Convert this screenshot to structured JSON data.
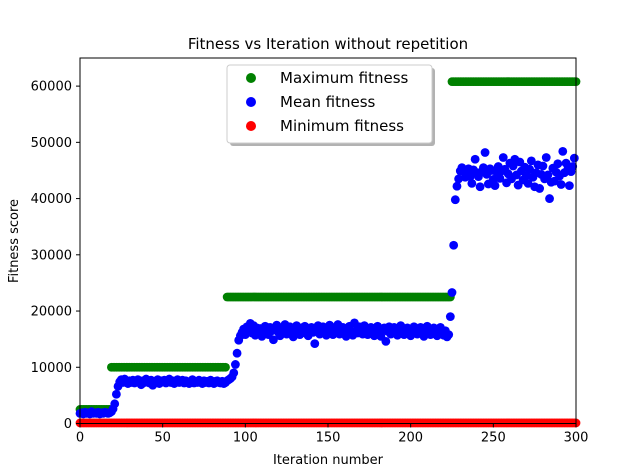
{
  "chart_data": {
    "type": "scatter",
    "title": "Fitness vs Iteration without repetition",
    "xlabel": "Iteration number",
    "ylabel": "Fitness score",
    "xlim": [
      0,
      300
    ],
    "ylim": [
      0,
      65000
    ],
    "xticks": [
      0,
      50,
      100,
      150,
      200,
      250,
      300
    ],
    "yticks": [
      0,
      10000,
      20000,
      30000,
      40000,
      50000,
      60000
    ],
    "xtick_labels": [
      "0",
      "50",
      "100",
      "150",
      "200",
      "250",
      "300"
    ],
    "ytick_labels": [
      "0",
      "10000",
      "20000",
      "30000",
      "40000",
      "50000",
      "60000"
    ],
    "grid": false,
    "legend_position": "upper center",
    "series": [
      {
        "name": "Maximum fitness",
        "color": "#008000",
        "segments": [
          {
            "x_start": 0,
            "x_end": 18,
            "y": 2500
          },
          {
            "x_start": 19,
            "x_end": 88,
            "y": 10000
          },
          {
            "x_start": 89,
            "x_end": 224,
            "y": 22500
          },
          {
            "x_start": 225,
            "x_end": 300,
            "y": 60800
          }
        ]
      },
      {
        "name": "Mean fitness",
        "color": "#0000ff",
        "points": [
          [
            0,
            1800
          ],
          [
            1,
            1900
          ],
          [
            2,
            1700
          ],
          [
            3,
            2000
          ],
          [
            4,
            1800
          ],
          [
            5,
            1900
          ],
          [
            6,
            1700
          ],
          [
            7,
            2100
          ],
          [
            8,
            1800
          ],
          [
            9,
            1900
          ],
          [
            10,
            1800
          ],
          [
            11,
            2000
          ],
          [
            12,
            1700
          ],
          [
            13,
            1900
          ],
          [
            14,
            1800
          ],
          [
            15,
            2000
          ],
          [
            16,
            1900
          ],
          [
            17,
            1800
          ],
          [
            18,
            1900
          ],
          [
            19,
            2100
          ],
          [
            20,
            2600
          ],
          [
            21,
            3500
          ],
          [
            22,
            5200
          ],
          [
            23,
            6600
          ],
          [
            24,
            7400
          ],
          [
            25,
            7800
          ],
          [
            26,
            7300
          ],
          [
            27,
            7900
          ],
          [
            28,
            7500
          ],
          [
            29,
            7100
          ],
          [
            30,
            7600
          ],
          [
            31,
            7300
          ],
          [
            32,
            7700
          ],
          [
            33,
            7200
          ],
          [
            34,
            7500
          ],
          [
            35,
            7800
          ],
          [
            36,
            7400
          ],
          [
            37,
            6900
          ],
          [
            38,
            7600
          ],
          [
            39,
            7300
          ],
          [
            40,
            7900
          ],
          [
            41,
            7400
          ],
          [
            42,
            7200
          ],
          [
            43,
            7700
          ],
          [
            44,
            6800
          ],
          [
            45,
            7500
          ],
          [
            46,
            7300
          ],
          [
            47,
            7800
          ],
          [
            48,
            7100
          ],
          [
            49,
            7600
          ],
          [
            50,
            7400
          ],
          [
            51,
            7700
          ],
          [
            52,
            7200
          ],
          [
            53,
            7500
          ],
          [
            54,
            7900
          ],
          [
            55,
            7300
          ],
          [
            56,
            7600
          ],
          [
            57,
            7100
          ],
          [
            58,
            7500
          ],
          [
            59,
            7800
          ],
          [
            60,
            7300
          ],
          [
            61,
            7400
          ],
          [
            62,
            7700
          ],
          [
            63,
            7200
          ],
          [
            64,
            7600
          ],
          [
            65,
            7400
          ],
          [
            66,
            7100
          ],
          [
            67,
            7500
          ],
          [
            68,
            7800
          ],
          [
            69,
            7200
          ],
          [
            70,
            7500
          ],
          [
            71,
            7300
          ],
          [
            72,
            7700
          ],
          [
            73,
            7400
          ],
          [
            74,
            7100
          ],
          [
            75,
            7600
          ],
          [
            76,
            7300
          ],
          [
            77,
            7500
          ],
          [
            78,
            7200
          ],
          [
            79,
            7700
          ],
          [
            80,
            7400
          ],
          [
            81,
            7100
          ],
          [
            82,
            7500
          ],
          [
            83,
            7600
          ],
          [
            84,
            7300
          ],
          [
            85,
            7200
          ],
          [
            86,
            7500
          ],
          [
            87,
            7100
          ],
          [
            88,
            7300
          ],
          [
            89,
            7600
          ],
          [
            90,
            7800
          ],
          [
            91,
            8000
          ],
          [
            92,
            8300
          ],
          [
            93,
            9000
          ],
          [
            94,
            10500
          ],
          [
            95,
            12500
          ],
          [
            96,
            14800
          ],
          [
            97,
            15600
          ],
          [
            98,
            16200
          ],
          [
            99,
            16800
          ],
          [
            100,
            15800
          ],
          [
            101,
            17200
          ],
          [
            102,
            16500
          ],
          [
            103,
            17800
          ],
          [
            104,
            16100
          ],
          [
            105,
            17400
          ],
          [
            106,
            15700
          ],
          [
            107,
            17000
          ],
          [
            108,
            16400
          ],
          [
            109,
            16900
          ],
          [
            110,
            15500
          ],
          [
            111,
            16700
          ],
          [
            112,
            17300
          ],
          [
            113,
            16200
          ],
          [
            114,
            15800
          ],
          [
            115,
            17100
          ],
          [
            116,
            16500
          ],
          [
            117,
            14900
          ],
          [
            118,
            16800
          ],
          [
            119,
            17500
          ],
          [
            120,
            16200
          ],
          [
            121,
            15600
          ],
          [
            122,
            17000
          ],
          [
            123,
            16400
          ],
          [
            124,
            17600
          ],
          [
            125,
            15900
          ],
          [
            126,
            16700
          ],
          [
            127,
            17200
          ],
          [
            128,
            16100
          ],
          [
            129,
            15400
          ],
          [
            130,
            16900
          ],
          [
            131,
            17400
          ],
          [
            132,
            16300
          ],
          [
            133,
            15800
          ],
          [
            134,
            17000
          ],
          [
            135,
            16500
          ],
          [
            136,
            17300
          ],
          [
            137,
            16000
          ],
          [
            138,
            15600
          ],
          [
            139,
            16800
          ],
          [
            140,
            17100
          ],
          [
            141,
            16200
          ],
          [
            142,
            14200
          ],
          [
            143,
            16600
          ],
          [
            144,
            17400
          ],
          [
            145,
            15900
          ],
          [
            146,
            16700
          ],
          [
            147,
            17200
          ],
          [
            148,
            16300
          ],
          [
            149,
            15700
          ],
          [
            150,
            16900
          ],
          [
            151,
            17500
          ],
          [
            152,
            16100
          ],
          [
            153,
            15800
          ],
          [
            154,
            17000
          ],
          [
            155,
            16400
          ],
          [
            156,
            17600
          ],
          [
            157,
            15900
          ],
          [
            158,
            16600
          ],
          [
            159,
            17100
          ],
          [
            160,
            16200
          ],
          [
            161,
            15500
          ],
          [
            162,
            16800
          ],
          [
            163,
            17300
          ],
          [
            164,
            16000
          ],
          [
            165,
            15700
          ],
          [
            166,
            17900
          ],
          [
            167,
            16500
          ],
          [
            168,
            16100
          ],
          [
            169,
            17200
          ],
          [
            170,
            16600
          ],
          [
            171,
            15900
          ],
          [
            172,
            17400
          ],
          [
            173,
            16300
          ],
          [
            174,
            15800
          ],
          [
            175,
            16900
          ],
          [
            176,
            17100
          ],
          [
            177,
            16200
          ],
          [
            178,
            15600
          ],
          [
            179,
            16700
          ],
          [
            180,
            17300
          ],
          [
            181,
            16000
          ],
          [
            182,
            15500
          ],
          [
            183,
            16800
          ],
          [
            184,
            17000
          ],
          [
            185,
            14600
          ],
          [
            186,
            16400
          ],
          [
            187,
            17200
          ],
          [
            188,
            15900
          ],
          [
            189,
            16600
          ],
          [
            190,
            17100
          ],
          [
            191,
            16200
          ],
          [
            192,
            15700
          ],
          [
            193,
            16900
          ],
          [
            194,
            17400
          ],
          [
            195,
            16300
          ],
          [
            196,
            15800
          ],
          [
            197,
            16700
          ],
          [
            198,
            17000
          ],
          [
            199,
            16100
          ],
          [
            200,
            15600
          ],
          [
            201,
            16800
          ],
          [
            202,
            17200
          ],
          [
            203,
            16400
          ],
          [
            204,
            15900
          ],
          [
            205,
            16600
          ],
          [
            206,
            17100
          ],
          [
            207,
            16000
          ],
          [
            208,
            15500
          ],
          [
            209,
            16900
          ],
          [
            210,
            17300
          ],
          [
            211,
            16200
          ],
          [
            212,
            15800
          ],
          [
            213,
            16700
          ],
          [
            214,
            17000
          ],
          [
            215,
            16300
          ],
          [
            216,
            15600
          ],
          [
            217,
            16800
          ],
          [
            218,
            17100
          ],
          [
            219,
            16100
          ],
          [
            220,
            15700
          ],
          [
            221,
            16500
          ],
          [
            222,
            15400
          ],
          [
            223,
            15800
          ],
          [
            224,
            19000
          ],
          [
            225,
            23300
          ],
          [
            226,
            31700
          ],
          [
            227,
            39800
          ],
          [
            228,
            42200
          ],
          [
            229,
            43500
          ],
          [
            230,
            44900
          ],
          [
            231,
            45500
          ],
          [
            232,
            45200
          ],
          [
            233,
            43800
          ],
          [
            234,
            44700
          ],
          [
            235,
            45300
          ],
          [
            236,
            43900
          ],
          [
            237,
            42700
          ],
          [
            238,
            45100
          ],
          [
            239,
            47000
          ],
          [
            240,
            44600
          ],
          [
            241,
            43900
          ],
          [
            242,
            42100
          ],
          [
            243,
            44800
          ],
          [
            244,
            45500
          ],
          [
            245,
            48200
          ],
          [
            246,
            44300
          ],
          [
            247,
            42600
          ],
          [
            248,
            45300
          ],
          [
            249,
            45000
          ],
          [
            250,
            43400
          ],
          [
            251,
            42300
          ],
          [
            252,
            44700
          ],
          [
            253,
            45700
          ],
          [
            254,
            43600
          ],
          [
            255,
            44900
          ],
          [
            256,
            47300
          ],
          [
            257,
            45200
          ],
          [
            258,
            42800
          ],
          [
            259,
            44400
          ],
          [
            260,
            46300
          ],
          [
            261,
            43500
          ],
          [
            262,
            45800
          ],
          [
            263,
            47000
          ],
          [
            264,
            44200
          ],
          [
            265,
            42400
          ],
          [
            266,
            46500
          ],
          [
            267,
            44900
          ],
          [
            268,
            43300
          ],
          [
            269,
            45600
          ],
          [
            270,
            44100
          ],
          [
            271,
            42700
          ],
          [
            272,
            45200
          ],
          [
            273,
            46700
          ],
          [
            274,
            43800
          ],
          [
            275,
            42100
          ],
          [
            276,
            44600
          ],
          [
            277,
            46000
          ],
          [
            278,
            41800
          ],
          [
            279,
            44300
          ],
          [
            280,
            45800
          ],
          [
            281,
            43500
          ],
          [
            282,
            47300
          ],
          [
            283,
            44200
          ],
          [
            284,
            40000
          ],
          [
            285,
            42900
          ],
          [
            286,
            45400
          ],
          [
            287,
            43100
          ],
          [
            288,
            44700
          ],
          [
            289,
            46200
          ],
          [
            290,
            44000
          ],
          [
            291,
            42500
          ],
          [
            292,
            48400
          ],
          [
            293,
            44600
          ],
          [
            294,
            46300
          ],
          [
            295,
            45200
          ],
          [
            296,
            42300
          ],
          [
            297,
            44800
          ],
          [
            298,
            45700
          ],
          [
            299,
            47200
          ]
        ]
      },
      {
        "name": "Minimum fitness",
        "color": "#ff0000",
        "segments": [
          {
            "x_start": 0,
            "x_end": 300,
            "y": 100
          }
        ]
      }
    ]
  }
}
